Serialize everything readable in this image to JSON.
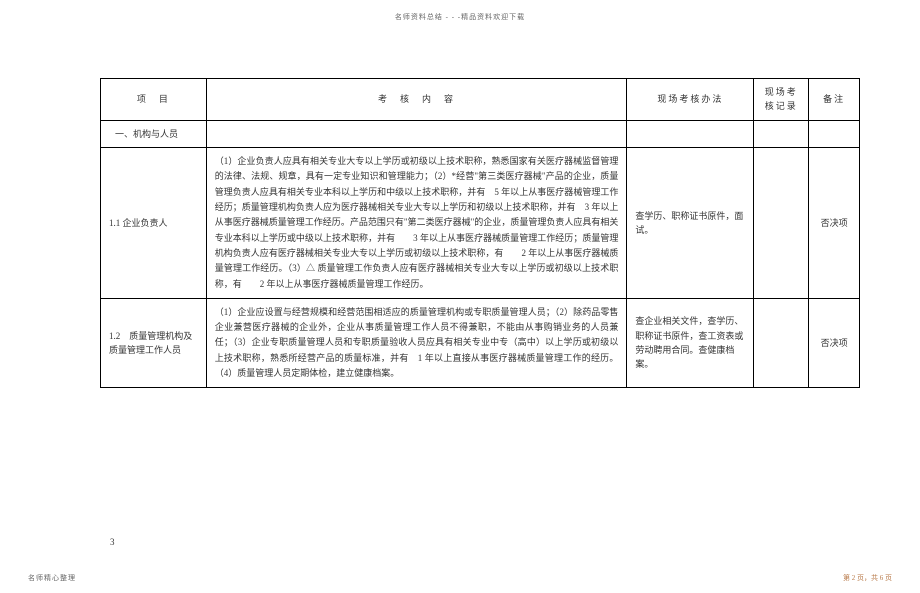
{
  "header_note": "名师资料总结 - - -精品资料欢迎下载",
  "columns": {
    "item": "项　目",
    "content": "考　核　内　容",
    "method": "现场考核办法",
    "record": "现场考核记录",
    "note": "备注"
  },
  "section1": "一、机构与人员",
  "rows": [
    {
      "item": "1.1 企业负责人",
      "content": "（1）企业负责人应具有相关专业大专以上学历或初级以上技术职称，熟悉国家有关医疗器械监督管理的法律、法规、规章，具有一定专业知识和管理能力；（2）*经营\"第三类医疗器械\"产品的企业，质量管理负责人应具有相关专业本科以上学历和中级以上技术职称，并有　5 年以上从事医疗器械管理工作经历；质量管理机构负责人应为医疗器械相关专业大专以上学历和初级以上技术职称，并有　3 年以上从事医疗器械质量管理工作经历。产品范围只有\"第二类医疗器械\"的企业，质量管理负责人应具有相关专业本科以上学历或中级以上技术职称，并有　　3 年以上从事医疗器械质量管理工作经历；质量管理机构负责人应有医疗器械相关专业大专以上学历或初级以上技术职称，有　　2 年以上从事医疗器械质量管理工作经历。（3）△ 质量管理工作负责人应有医疗器械相关专业大专以上学历或初级以上技术职称，有　　2 年以上从事医疗器械质量管理工作经历。",
      "method": "查学历、职称证书原件，面试。",
      "record": "",
      "note": "否决项"
    },
    {
      "item": "1.2　质量管理机构及质量管理工作人员",
      "content": "（1）企业应设置与经营规模和经营范围相适应的质量管理机构或专职质量管理人员；（2）除药品零售企业兼营医疗器械的企业外，企业从事质量管理工作人员不得兼职，不能由从事购销业务的人员兼任；（3）企业专职质量管理人员和专职质量验收人员应具有相关专业中专（高中）以上学历或初级以上技术职称，熟悉所经营产品的质量标准，并有　1 年以上直接从事医疗器械质量管理工作的经历。（4）质量管理人员定期体检，建立健康档案。",
      "method": "查企业相关文件，查学历、职称证书原件，查工资表或劳动聘用合同。查健康档案。",
      "record": "",
      "note": "否决项"
    }
  ],
  "page_num_small": "3",
  "footer_left": "名师精心整理",
  "footer_right": "第 2 页，共 6 页"
}
